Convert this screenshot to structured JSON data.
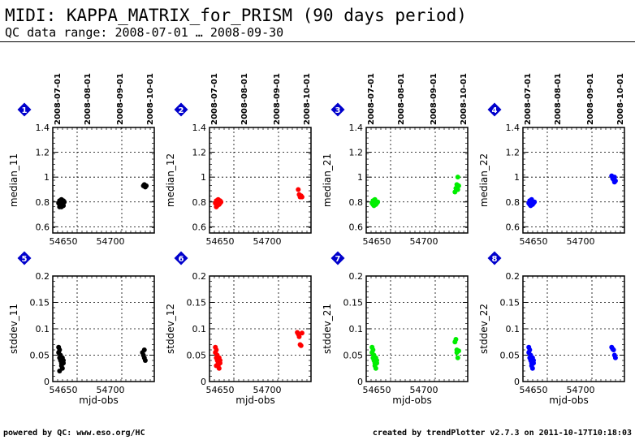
{
  "header": {
    "title": "MIDI: KAPPA_MATRIX_for_PRISM (90 days period)",
    "subtitle": "QC data range: 2008-07-01 … 2008-09-30"
  },
  "footer": {
    "left": "powered by QC: www.eso.org/HC",
    "right": "created by trendPlotter v2.7.3 on 2011-10-17T10:18:03"
  },
  "colors": {
    "panel1": "#000000",
    "panel2": "#ff0000",
    "panel3": "#00ee00",
    "panel4": "#0000ff",
    "badge": "#0000cc"
  },
  "chart_data": [
    {
      "type": "scatter",
      "panel": "1",
      "ylabel": "median_11",
      "xlabel": "",
      "color": "#000000",
      "xlim": [
        54638,
        54740
      ],
      "ylim": [
        0.55,
        1.4
      ],
      "yticks": [
        "0.6",
        "0.8",
        "1",
        "1.2",
        "1.4"
      ],
      "xticks": [
        "54650",
        "54700"
      ],
      "date_ticks": [
        "2008-07-01",
        "2008-08-01",
        "2008-09-01",
        "2008-10-01"
      ],
      "points": [
        [
          54645,
          0.79
        ],
        [
          54646,
          0.78
        ],
        [
          54646,
          0.81
        ],
        [
          54647,
          0.8
        ],
        [
          54647,
          0.77
        ],
        [
          54648,
          0.79
        ],
        [
          54648,
          0.82
        ],
        [
          54649,
          0.8
        ],
        [
          54649,
          0.78
        ],
        [
          54650,
          0.79
        ],
        [
          54650,
          0.81
        ],
        [
          54651,
          0.8
        ],
        [
          54646,
          0.76
        ],
        [
          54648,
          0.76
        ],
        [
          54650,
          0.77
        ],
        [
          54735,
          0.93
        ],
        [
          54736,
          0.94
        ],
        [
          54737,
          0.92
        ],
        [
          54737,
          0.93
        ],
        [
          54738,
          0.93
        ]
      ]
    },
    {
      "type": "scatter",
      "panel": "2",
      "ylabel": "median_12",
      "xlabel": "",
      "color": "#ff0000",
      "xlim": [
        54638,
        54740
      ],
      "ylim": [
        0.55,
        1.4
      ],
      "yticks": [
        "0.6",
        "0.8",
        "1",
        "1.2",
        "1.4"
      ],
      "xticks": [
        "54650",
        "54700"
      ],
      "date_ticks": [
        "2008-07-01",
        "2008-08-01",
        "2008-09-01",
        "2008-10-01"
      ],
      "points": [
        [
          54645,
          0.79
        ],
        [
          54646,
          0.78
        ],
        [
          54646,
          0.81
        ],
        [
          54647,
          0.8
        ],
        [
          54647,
          0.77
        ],
        [
          54648,
          0.79
        ],
        [
          54648,
          0.82
        ],
        [
          54649,
          0.8
        ],
        [
          54649,
          0.78
        ],
        [
          54650,
          0.79
        ],
        [
          54650,
          0.81
        ],
        [
          54651,
          0.8
        ],
        [
          54646,
          0.76
        ],
        [
          54733,
          0.9
        ],
        [
          54734,
          0.86
        ],
        [
          54735,
          0.84
        ],
        [
          54736,
          0.85
        ],
        [
          54737,
          0.84
        ]
      ]
    },
    {
      "type": "scatter",
      "panel": "3",
      "ylabel": "median_21",
      "xlabel": "",
      "color": "#00ee00",
      "xlim": [
        54638,
        54740
      ],
      "ylim": [
        0.55,
        1.4
      ],
      "yticks": [
        "0.6",
        "0.8",
        "1",
        "1.2",
        "1.4"
      ],
      "xticks": [
        "54650",
        "54700"
      ],
      "date_ticks": [
        "2008-07-01",
        "2008-08-01",
        "2008-09-01",
        "2008-10-01"
      ],
      "points": [
        [
          54645,
          0.79
        ],
        [
          54646,
          0.78
        ],
        [
          54646,
          0.81
        ],
        [
          54647,
          0.8
        ],
        [
          54647,
          0.77
        ],
        [
          54648,
          0.79
        ],
        [
          54648,
          0.82
        ],
        [
          54649,
          0.8
        ],
        [
          54649,
          0.78
        ],
        [
          54650,
          0.79
        ],
        [
          54651,
          0.8
        ],
        [
          54733,
          0.88
        ],
        [
          54734,
          0.91
        ],
        [
          54735,
          0.94
        ],
        [
          54736,
          1.0
        ],
        [
          54736,
          0.9
        ],
        [
          54737,
          0.93
        ]
      ]
    },
    {
      "type": "scatter",
      "panel": "4",
      "ylabel": "median_22",
      "xlabel": "",
      "color": "#0000ff",
      "xlim": [
        54638,
        54740
      ],
      "ylim": [
        0.55,
        1.4
      ],
      "yticks": [
        "0.6",
        "0.8",
        "1",
        "1.2",
        "1.4"
      ],
      "xticks": [
        "54650",
        "54700"
      ],
      "date_ticks": [
        "2008-07-01",
        "2008-08-01",
        "2008-09-01",
        "2008-10-01"
      ],
      "points": [
        [
          54645,
          0.79
        ],
        [
          54646,
          0.78
        ],
        [
          54646,
          0.81
        ],
        [
          54647,
          0.8
        ],
        [
          54647,
          0.77
        ],
        [
          54648,
          0.79
        ],
        [
          54648,
          0.82
        ],
        [
          54649,
          0.8
        ],
        [
          54649,
          0.78
        ],
        [
          54650,
          0.79
        ],
        [
          54651,
          0.8
        ],
        [
          54733,
          1.01
        ],
        [
          54734,
          0.99
        ],
        [
          54735,
          0.98
        ],
        [
          54736,
          1.0
        ],
        [
          54736,
          0.96
        ],
        [
          54737,
          0.97
        ]
      ]
    },
    {
      "type": "scatter",
      "panel": "5",
      "ylabel": "stddev_11",
      "xlabel": "mjd-obs",
      "color": "#000000",
      "xlim": [
        54638,
        54740
      ],
      "ylim": [
        0,
        0.2
      ],
      "yticks": [
        "0",
        "0.05",
        "0.1",
        "0.15",
        "0.2"
      ],
      "xticks": [
        "54650",
        "54700"
      ],
      "points": [
        [
          54645,
          0.065
        ],
        [
          54645,
          0.055
        ],
        [
          54646,
          0.045
        ],
        [
          54646,
          0.06
        ],
        [
          54647,
          0.04
        ],
        [
          54647,
          0.05
        ],
        [
          54648,
          0.035
        ],
        [
          54648,
          0.03
        ],
        [
          54649,
          0.045
        ],
        [
          54649,
          0.025
        ],
        [
          54650,
          0.04
        ],
        [
          54650,
          0.035
        ],
        [
          54646,
          0.02
        ],
        [
          54734,
          0.055
        ],
        [
          54735,
          0.05
        ],
        [
          54736,
          0.045
        ],
        [
          54736,
          0.06
        ],
        [
          54737,
          0.04
        ]
      ]
    },
    {
      "type": "scatter",
      "panel": "6",
      "ylabel": "stddev_12",
      "xlabel": "mjd-obs",
      "color": "#ff0000",
      "xlim": [
        54638,
        54740
      ],
      "ylim": [
        0,
        0.2
      ],
      "yticks": [
        "0",
        "0.05",
        "0.1",
        "0.15",
        "0.2"
      ],
      "xticks": [
        "54650",
        "54700"
      ],
      "points": [
        [
          54645,
          0.065
        ],
        [
          54645,
          0.055
        ],
        [
          54646,
          0.045
        ],
        [
          54646,
          0.06
        ],
        [
          54647,
          0.04
        ],
        [
          54647,
          0.05
        ],
        [
          54648,
          0.035
        ],
        [
          54648,
          0.03
        ],
        [
          54649,
          0.045
        ],
        [
          54649,
          0.025
        ],
        [
          54650,
          0.04
        ],
        [
          54650,
          0.035
        ],
        [
          54646,
          0.03
        ],
        [
          54732,
          0.093
        ],
        [
          54733,
          0.09
        ],
        [
          54734,
          0.085
        ],
        [
          54735,
          0.07
        ],
        [
          54736,
          0.068
        ],
        [
          54737,
          0.092
        ]
      ]
    },
    {
      "type": "scatter",
      "panel": "7",
      "ylabel": "stddev_21",
      "xlabel": "mjd-obs",
      "color": "#00ee00",
      "xlim": [
        54638,
        54740
      ],
      "ylim": [
        0,
        0.2
      ],
      "yticks": [
        "0",
        "0.05",
        "0.1",
        "0.15",
        "0.2"
      ],
      "xticks": [
        "54650",
        "54700"
      ],
      "points": [
        [
          54645,
          0.065
        ],
        [
          54645,
          0.055
        ],
        [
          54646,
          0.045
        ],
        [
          54646,
          0.06
        ],
        [
          54647,
          0.04
        ],
        [
          54647,
          0.05
        ],
        [
          54648,
          0.035
        ],
        [
          54648,
          0.03
        ],
        [
          54649,
          0.045
        ],
        [
          54649,
          0.025
        ],
        [
          54650,
          0.04
        ],
        [
          54650,
          0.035
        ],
        [
          54733,
          0.075
        ],
        [
          54734,
          0.08
        ],
        [
          54735,
          0.06
        ],
        [
          54735,
          0.055
        ],
        [
          54736,
          0.045
        ],
        [
          54737,
          0.058
        ]
      ]
    },
    {
      "type": "scatter",
      "panel": "8",
      "ylabel": "stddev_22",
      "xlabel": "mjd-obs",
      "color": "#0000ff",
      "xlim": [
        54638,
        54740
      ],
      "ylim": [
        0,
        0.2
      ],
      "yticks": [
        "0",
        "0.05",
        "0.1",
        "0.15",
        "0.2"
      ],
      "xticks": [
        "54650",
        "54700"
      ],
      "points": [
        [
          54645,
          0.065
        ],
        [
          54645,
          0.055
        ],
        [
          54646,
          0.045
        ],
        [
          54646,
          0.06
        ],
        [
          54647,
          0.04
        ],
        [
          54647,
          0.05
        ],
        [
          54648,
          0.035
        ],
        [
          54648,
          0.03
        ],
        [
          54649,
          0.045
        ],
        [
          54649,
          0.025
        ],
        [
          54650,
          0.04
        ],
        [
          54650,
          0.035
        ],
        [
          54733,
          0.065
        ],
        [
          54734,
          0.062
        ],
        [
          54735,
          0.06
        ],
        [
          54736,
          0.05
        ],
        [
          54737,
          0.045
        ]
      ]
    }
  ]
}
